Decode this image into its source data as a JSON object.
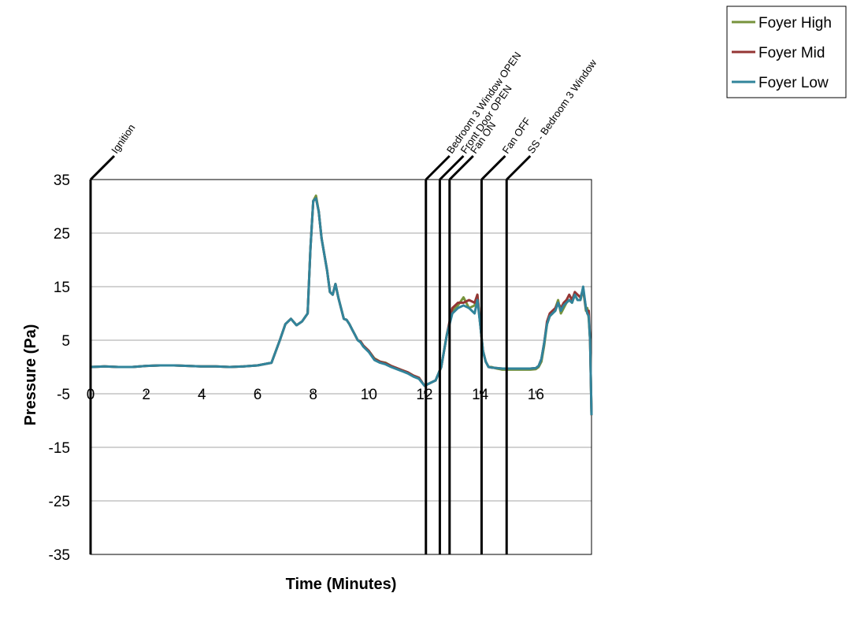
{
  "chart_data": {
    "type": "line",
    "title": "",
    "xlabel": "Time (Minutes)",
    "ylabel": "Pressure (Pa)",
    "xlim": [
      0,
      18
    ],
    "ylim": [
      -35,
      35
    ],
    "x_ticks": [
      0,
      2,
      4,
      6,
      8,
      10,
      12,
      14,
      16
    ],
    "y_ticks": [
      35,
      25,
      15,
      5,
      -5,
      -15,
      -25,
      -35
    ],
    "grid": "horizontal",
    "legend_position": "top-right",
    "events": [
      {
        "label": "Ignition",
        "x": 0
      },
      {
        "label": "Bedroom 3 Window OPEN",
        "x": 12.05
      },
      {
        "label": "Front Door OPEN",
        "x": 12.55
      },
      {
        "label": "Fan ON",
        "x": 12.9
      },
      {
        "label": "Fan OFF",
        "x": 14.05
      },
      {
        "label": "SS - Bedroom 3 Window",
        "x": 14.95
      }
    ],
    "x": [
      0,
      0.5,
      1,
      1.5,
      2,
      2.5,
      3,
      3.5,
      4,
      4.5,
      5,
      5.5,
      6,
      6.5,
      6.8,
      7,
      7.2,
      7.4,
      7.6,
      7.8,
      7.9,
      8,
      8.1,
      8.2,
      8.3,
      8.4,
      8.5,
      8.6,
      8.7,
      8.8,
      8.9,
      9,
      9.1,
      9.2,
      9.3,
      9.4,
      9.5,
      9.6,
      9.7,
      9.8,
      10,
      10.2,
      10.4,
      10.6,
      10.8,
      11,
      11.2,
      11.4,
      11.6,
      11.8,
      12,
      12.2,
      12.4,
      12.6,
      12.8,
      13,
      13.2,
      13.4,
      13.6,
      13.8,
      13.9,
      14,
      14.1,
      14.2,
      14.3,
      14.4,
      14.6,
      14.8,
      15,
      15.2,
      15.4,
      15.6,
      15.8,
      16,
      16.1,
      16.2,
      16.3,
      16.4,
      16.5,
      16.6,
      16.7,
      16.8,
      16.9,
      17,
      17.1,
      17.2,
      17.3,
      17.4,
      17.5,
      17.6,
      17.7,
      17.8,
      17.85,
      17.9,
      17.95,
      18
    ],
    "series": [
      {
        "name": "Foyer High",
        "color": "#77933c",
        "values": [
          0,
          0.1,
          0,
          0,
          0.2,
          0.3,
          0.3,
          0.2,
          0.1,
          0.1,
          0,
          0.1,
          0.3,
          0.8,
          5,
          8,
          9,
          7.8,
          8.5,
          10,
          22,
          31,
          32,
          29,
          24,
          21,
          18,
          14,
          13.5,
          15.5,
          13,
          11,
          9,
          8.8,
          8,
          7,
          6,
          5,
          4.8,
          4,
          3,
          1.6,
          1,
          0.8,
          0.2,
          -0.2,
          -0.6,
          -1,
          -1.6,
          -2,
          -3.5,
          -3,
          -2.5,
          0,
          6,
          10.5,
          11.5,
          13,
          11,
          11.5,
          13.5,
          8,
          3,
          1,
          0,
          0,
          -0.3,
          -0.5,
          -0.5,
          -0.5,
          -0.5,
          -0.5,
          -0.5,
          -0.4,
          0,
          1,
          4,
          8,
          9.5,
          10,
          11,
          12.5,
          10,
          11,
          12,
          12.5,
          12,
          13.5,
          12.5,
          12.5,
          14.5,
          10.5,
          11,
          9,
          5,
          -9
        ]
      },
      {
        "name": "Foyer Mid",
        "color": "#943634",
        "values": [
          0,
          0.1,
          0,
          0,
          0.2,
          0.3,
          0.3,
          0.2,
          0.1,
          0.1,
          0,
          0.1,
          0.3,
          0.8,
          5,
          8,
          9,
          7.8,
          8.5,
          10,
          22,
          31,
          31.5,
          29,
          24,
          21,
          18,
          14,
          13.5,
          15.5,
          13,
          11,
          9,
          8.8,
          8,
          7,
          6,
          5,
          4.8,
          4,
          3,
          1.5,
          1,
          0.7,
          0.2,
          -0.2,
          -0.6,
          -1,
          -1.6,
          -2,
          -3.5,
          -3,
          -2.5,
          0,
          6,
          11,
          12,
          12,
          12.5,
          12,
          13.5,
          8,
          3,
          1,
          0,
          -0.1,
          -0.2,
          -0.3,
          -0.3,
          -0.3,
          -0.3,
          -0.3,
          -0.3,
          -0.2,
          0.2,
          1.5,
          4.5,
          8.5,
          10,
          10.5,
          11,
          12,
          11,
          12,
          12.5,
          13.5,
          12.5,
          14,
          13.5,
          13,
          14.5,
          11,
          10,
          10.5,
          5,
          -9
        ]
      },
      {
        "name": "Foyer Low",
        "color": "#31849b",
        "values": [
          0,
          0.1,
          0,
          0,
          0.2,
          0.3,
          0.3,
          0.2,
          0.1,
          0.1,
          0,
          0.1,
          0.3,
          0.8,
          5,
          8,
          9,
          7.8,
          8.5,
          10,
          22,
          31,
          31.5,
          29,
          24,
          21,
          18,
          14,
          13.5,
          15.5,
          13,
          11,
          9,
          8.8,
          8,
          7,
          6,
          5,
          4.6,
          3.8,
          2.8,
          1.3,
          0.8,
          0.5,
          0,
          -0.4,
          -0.8,
          -1.2,
          -1.8,
          -2.2,
          -3.5,
          -3,
          -2.5,
          0,
          6,
          10,
          11,
          11.5,
          11,
          10,
          12.5,
          8,
          3,
          1,
          0,
          -0.1,
          -0.2,
          -0.3,
          -0.3,
          -0.3,
          -0.3,
          -0.3,
          -0.3,
          -0.2,
          0.2,
          1.5,
          4.5,
          8,
          9.5,
          10,
          10.5,
          12,
          10.5,
          11.5,
          12,
          12.5,
          12,
          13.5,
          12.5,
          12.5,
          15,
          11,
          10,
          9.5,
          5,
          -9
        ]
      }
    ]
  }
}
